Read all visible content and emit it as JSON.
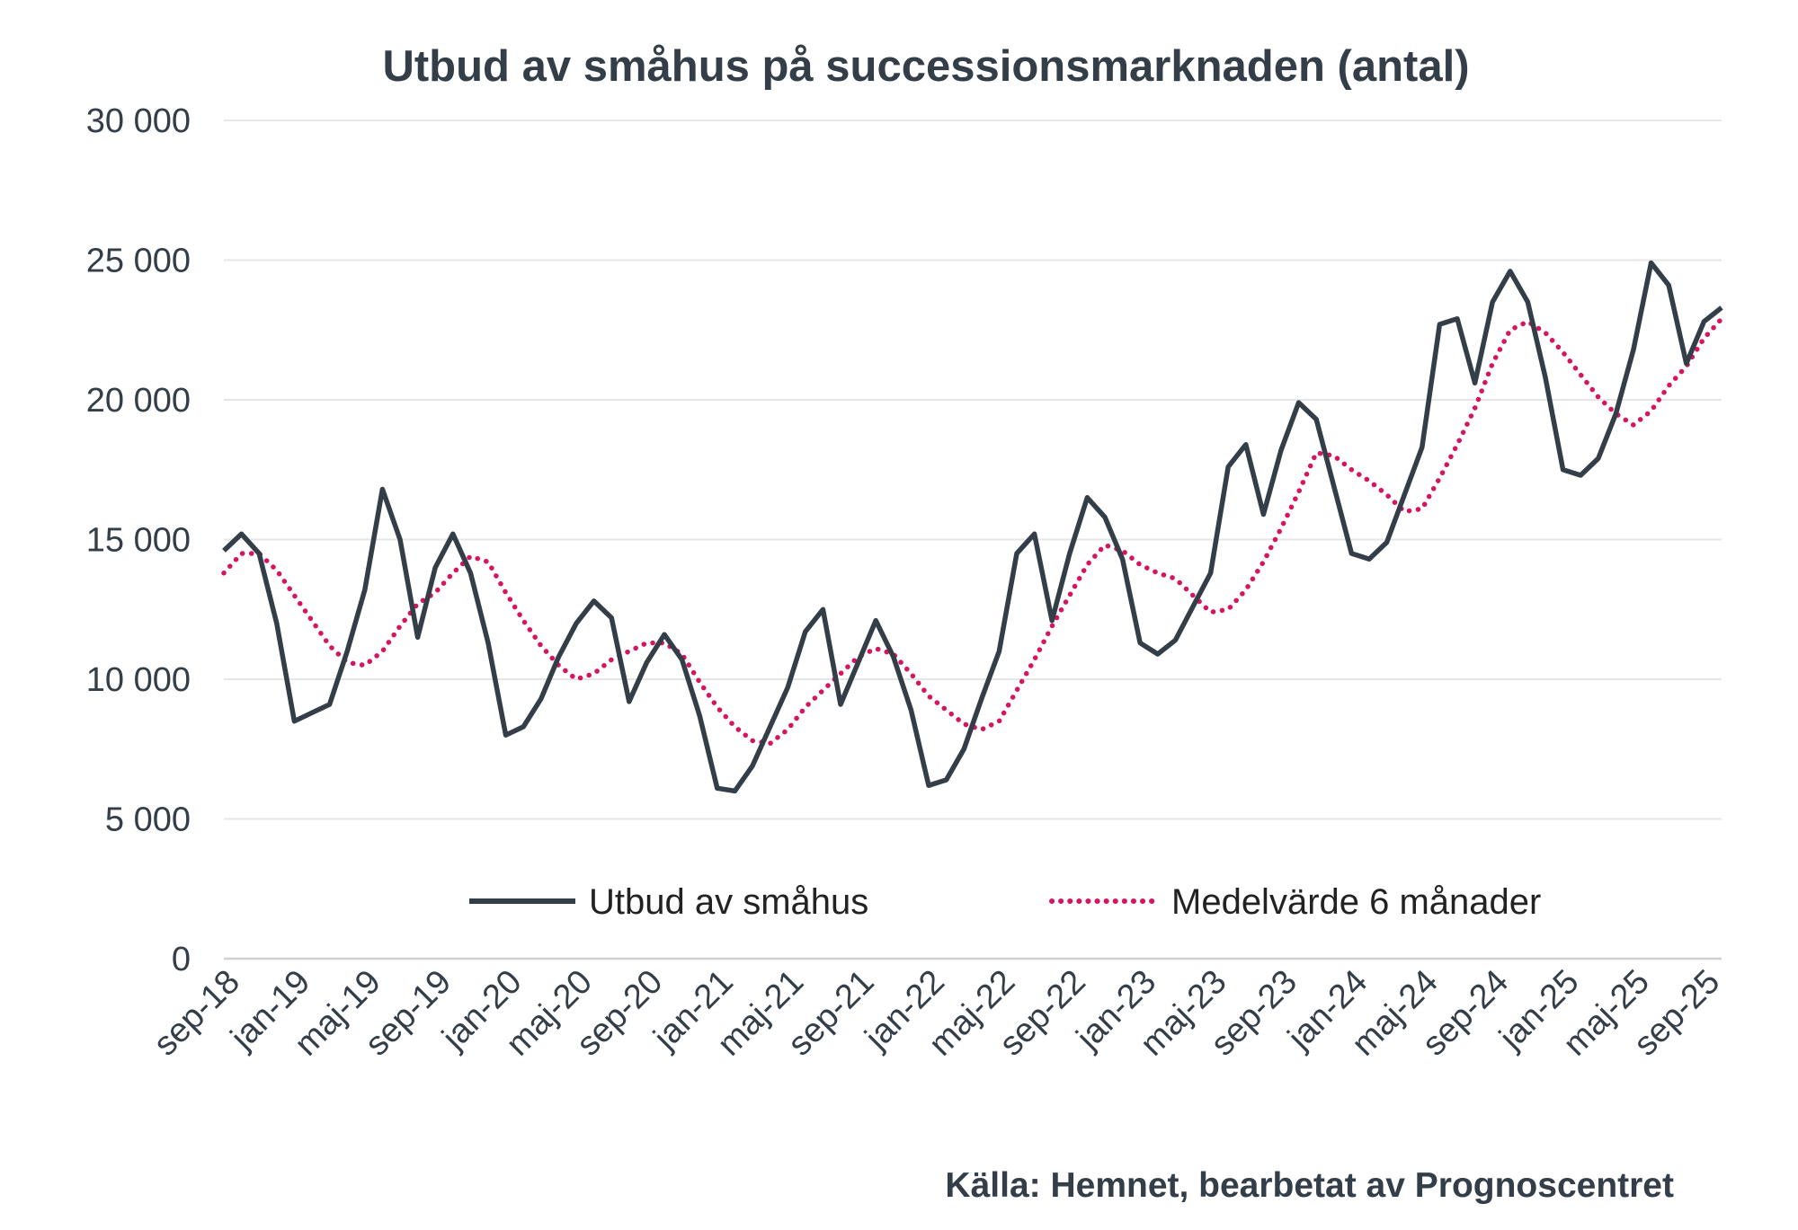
{
  "chart_data": {
    "type": "line",
    "title": "Utbud av småhus på successionsmarknaden (antal)",
    "source": "Källa: Hemnet, bearbetat av Prognoscentret",
    "ylim": [
      0,
      30000
    ],
    "y_ticks": [
      0,
      5000,
      10000,
      15000,
      20000,
      25000,
      30000
    ],
    "y_tick_labels": [
      "0",
      "5 000",
      "10 000",
      "15 000",
      "20 000",
      "25 000",
      "30 000"
    ],
    "x_tick_labels": [
      "sep-18",
      "jan-19",
      "maj-19",
      "sep-19",
      "jan-20",
      "maj-20",
      "sep-20",
      "jan-21",
      "maj-21",
      "sep-21",
      "jan-22",
      "maj-22",
      "sep-22",
      "jan-23",
      "maj-23",
      "sep-23",
      "jan-24",
      "maj-24",
      "sep-24",
      "jan-25",
      "maj-25",
      "sep-25"
    ],
    "x": [
      "aug-18",
      "sep-18",
      "okt-18",
      "nov-18",
      "dec-18",
      "jan-19",
      "feb-19",
      "mar-19",
      "apr-19",
      "maj-19",
      "jun-19",
      "jul-19",
      "aug-19",
      "sep-19",
      "okt-19",
      "nov-19",
      "dec-19",
      "jan-20",
      "feb-20",
      "mar-20",
      "apr-20",
      "maj-20",
      "jun-20",
      "jul-20",
      "aug-20",
      "sep-20",
      "okt-20",
      "nov-20",
      "dec-20",
      "jan-21",
      "feb-21",
      "mar-21",
      "apr-21",
      "maj-21",
      "jun-21",
      "jul-21",
      "aug-21",
      "sep-21",
      "okt-21",
      "nov-21",
      "dec-21",
      "jan-22",
      "feb-22",
      "mar-22",
      "apr-22",
      "maj-22",
      "jun-22",
      "jul-22",
      "aug-22",
      "sep-22",
      "okt-22",
      "nov-22",
      "dec-22",
      "jan-23",
      "feb-23",
      "mar-23",
      "apr-23",
      "maj-23",
      "jun-23",
      "jul-23",
      "aug-23",
      "sep-23",
      "okt-23",
      "nov-23",
      "dec-23",
      "jan-24",
      "feb-24",
      "mar-24",
      "apr-24",
      "maj-24",
      "jun-24",
      "jul-24",
      "aug-24",
      "sep-24",
      "okt-24",
      "nov-24",
      "dec-24",
      "jan-25",
      "feb-25",
      "mar-25",
      "apr-25",
      "maj-25",
      "jun-25",
      "jul-25",
      "aug-25",
      "sep-25"
    ],
    "series": [
      {
        "name": "Utbud av småhus",
        "color": "#333e48",
        "style": "solid",
        "values": [
          14600,
          15200,
          14500,
          12000,
          8500,
          8800,
          9100,
          11000,
          13200,
          16800,
          15000,
          11500,
          14000,
          15200,
          13800,
          11300,
          8000,
          8300,
          9300,
          10800,
          12000,
          12800,
          12200,
          9200,
          10600,
          11600,
          10700,
          8700,
          6100,
          6000,
          6900,
          8300,
          9700,
          11700,
          12500,
          9100,
          10600,
          12100,
          10800,
          8900,
          6200,
          6400,
          7500,
          9300,
          11000,
          14500,
          15200,
          12100,
          14500,
          16500,
          15800,
          14300,
          11300,
          10900,
          11400,
          12600,
          13800,
          17600,
          18400,
          15900,
          18200,
          19900,
          19300,
          16900,
          14500,
          14300,
          14900,
          16600,
          18300,
          22700,
          22900,
          20600,
          23500,
          24600,
          23500,
          20800,
          17500,
          17300,
          17900,
          19500,
          21800,
          24900,
          24100,
          21300,
          22800,
          23300
        ]
      },
      {
        "name": "Medelvärde 6 månader",
        "color": "#d6145f",
        "style": "dotted",
        "values": [
          13800,
          14500,
          14500,
          13900,
          13000,
          12100,
          11200,
          10600,
          10500,
          11000,
          11900,
          12700,
          13100,
          13800,
          14400,
          14200,
          13100,
          12100,
          11200,
          10500,
          10000,
          10200,
          10700,
          11000,
          11300,
          11300,
          10900,
          9900,
          9000,
          8300,
          7800,
          7700,
          8200,
          9000,
          9600,
          10200,
          10800,
          11100,
          10900,
          10200,
          9400,
          8900,
          8400,
          8200,
          8500,
          9600,
          10700,
          11900,
          13000,
          14100,
          14800,
          14600,
          14100,
          13800,
          13600,
          13000,
          12400,
          12500,
          13200,
          14200,
          15400,
          16700,
          18100,
          18000,
          17500,
          17100,
          16600,
          16000,
          16100,
          17200,
          18400,
          19700,
          21300,
          22500,
          22800,
          22400,
          21700,
          20900,
          20100,
          19500,
          19100,
          19600,
          20500,
          21200,
          22200,
          22900
        ]
      }
    ],
    "legend": {
      "placement": "bottom-center-inside",
      "items": [
        "Utbud av småhus",
        "Medelvärde 6 månader"
      ]
    },
    "grid": true
  }
}
